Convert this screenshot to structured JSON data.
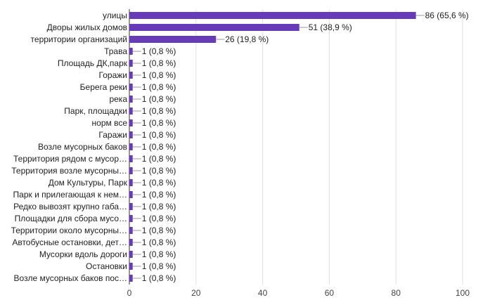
{
  "chart_data": {
    "type": "hbar",
    "color": "#673ab7",
    "grid": true,
    "categories": [
      "улицы",
      "Дворы жилых домов",
      "территории организаций",
      "Трава",
      "Площадь ДК,парк",
      "Горажи",
      "Берега реки",
      "река",
      "Парк, площадки",
      "норм все",
      "Гаражи",
      "Возле мусорных баков",
      "Территория рядом с мусор…",
      "Территория возле мусорны…",
      "Дом Культуры, Парк",
      "Парк и прилегающая к нем…",
      "Редко вывозят крупно габа…",
      "Площадки для сбора мусо…",
      "Территории около мусорны…",
      "Автобусные остановки, дет…",
      "Мусорки вдоль дороги",
      "Остановки",
      "Возле мусорных баков пос…"
    ],
    "values": [
      86,
      51,
      26,
      1,
      1,
      1,
      1,
      1,
      1,
      1,
      1,
      1,
      1,
      1,
      1,
      1,
      1,
      1,
      1,
      1,
      1,
      1,
      1
    ],
    "value_labels": [
      "86 (65,6 %)",
      "51 (38,9 %)",
      "26 (19,8 %)",
      "1 (0,8 %)",
      "1 (0,8 %)",
      "1 (0,8 %)",
      "1 (0,8 %)",
      "1 (0,8 %)",
      "1 (0,8 %)",
      "1 (0,8 %)",
      "1 (0,8 %)",
      "1 (0,8 %)",
      "1 (0,8 %)",
      "1 (0,8 %)",
      "1 (0,8 %)",
      "1 (0,8 %)",
      "1 (0,8 %)",
      "1 (0,8 %)",
      "1 (0,8 %)",
      "1 (0,8 %)",
      "1 (0,8 %)",
      "1 (0,8 %)",
      "1 (0,8 %)"
    ],
    "xlim": [
      0,
      100
    ],
    "xticks": [
      0,
      20,
      40,
      60,
      80,
      100
    ]
  }
}
